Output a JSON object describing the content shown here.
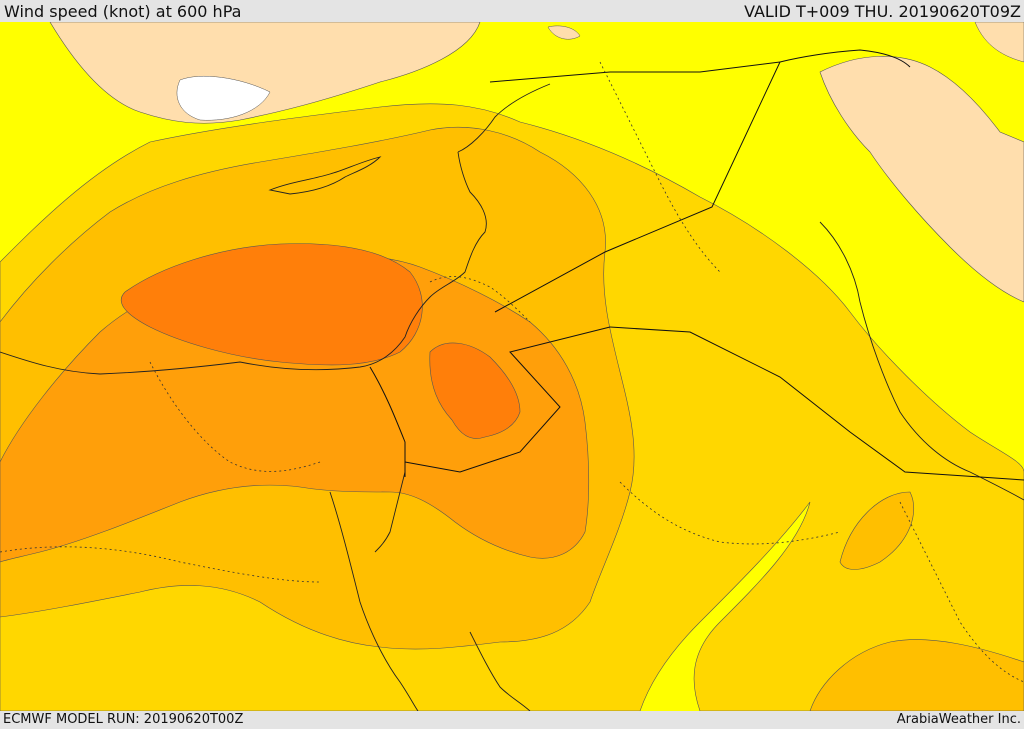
{
  "header": {
    "title": "Wind speed (knot) at 600 hPa",
    "valid": "VALID T+009 THU. 20190620T09Z"
  },
  "footer": {
    "model_run": "ECMWF MODEL RUN: 20190620T00Z",
    "credit": "ArabiaWeather Inc."
  },
  "colors": {
    "level_0": "#ffffff",
    "level_1": "#ffdead",
    "level_2": "#ffff00",
    "level_3": "#ffd700",
    "level_4": "#ffbf00",
    "level_5": "#ff9f0a",
    "level_6": "#ff7f0a"
  }
}
